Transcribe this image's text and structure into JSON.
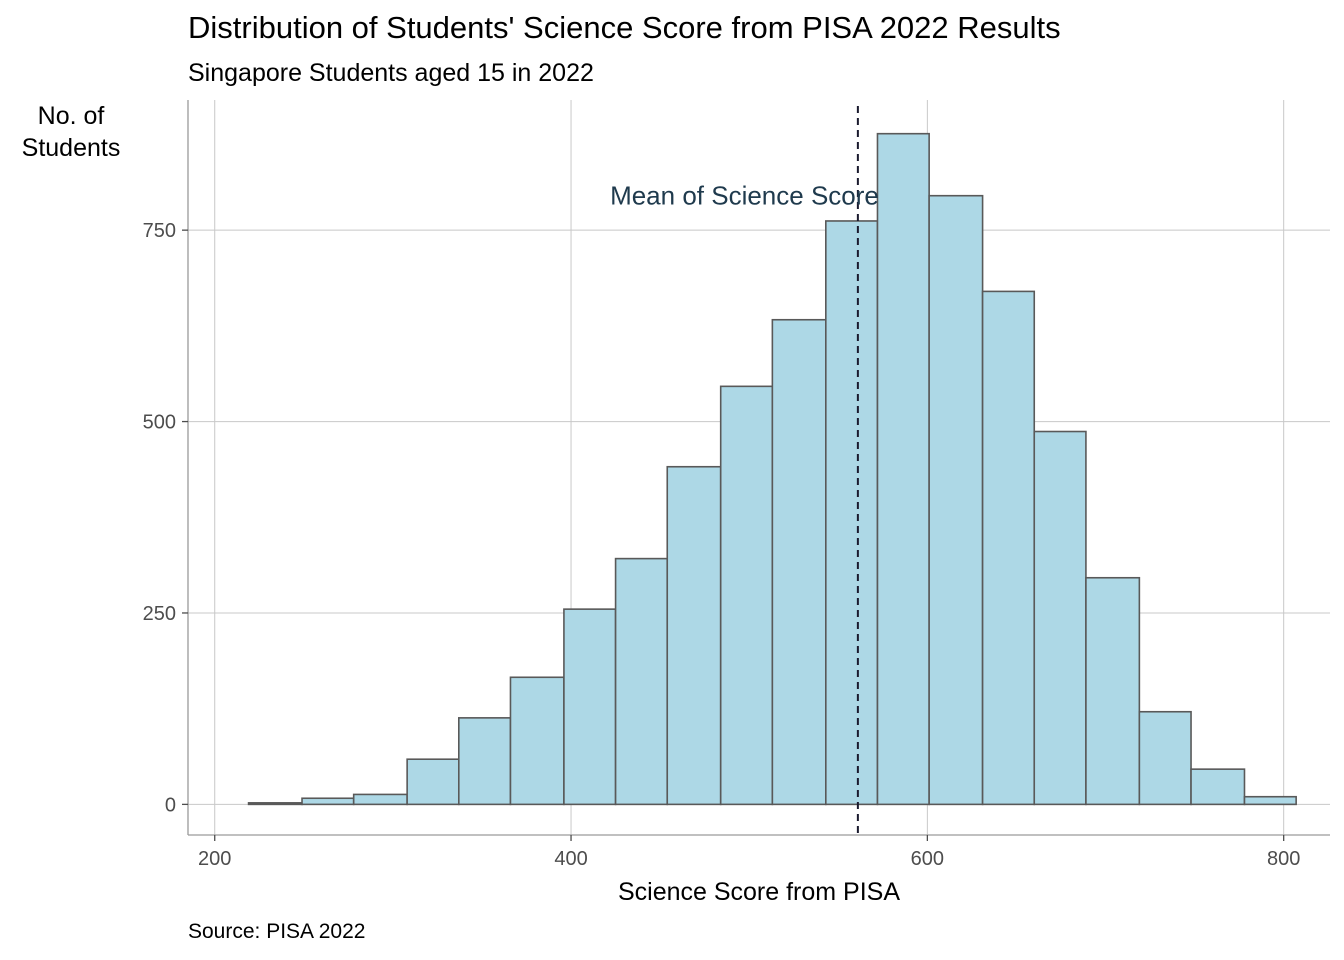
{
  "chart_data": {
    "type": "bar",
    "title": "Distribution of Students' Science Score from PISA 2022 Results",
    "subtitle": "Singapore Students aged 15 in 2022",
    "xlabel": "Science Score from PISA",
    "ylabel": "No. of\nStudents",
    "caption": "Source: PISA 2022",
    "annotation": "Mean of Science Score",
    "mean": 561,
    "xlim": [
      185,
      826
    ],
    "ylim": [
      -40,
      920
    ],
    "x_ticks": [
      200,
      400,
      600,
      800
    ],
    "y_ticks": [
      0,
      250,
      500,
      750
    ],
    "bins": [
      {
        "x0": 219,
        "x1": 249,
        "count": 2
      },
      {
        "x0": 249,
        "x1": 278,
        "count": 8
      },
      {
        "x0": 278,
        "x1": 308,
        "count": 13
      },
      {
        "x0": 308,
        "x1": 337,
        "count": 59
      },
      {
        "x0": 337,
        "x1": 366,
        "count": 113
      },
      {
        "x0": 366,
        "x1": 396,
        "count": 166
      },
      {
        "x0": 396,
        "x1": 425,
        "count": 255
      },
      {
        "x0": 425,
        "x1": 454,
        "count": 321
      },
      {
        "x0": 454,
        "x1": 484,
        "count": 441
      },
      {
        "x0": 484,
        "x1": 513,
        "count": 546
      },
      {
        "x0": 513,
        "x1": 543,
        "count": 633
      },
      {
        "x0": 543,
        "x1": 572,
        "count": 762
      },
      {
        "x0": 572,
        "x1": 601,
        "count": 876
      },
      {
        "x0": 601,
        "x1": 631,
        "count": 795
      },
      {
        "x0": 631,
        "x1": 660,
        "count": 670
      },
      {
        "x0": 660,
        "x1": 689,
        "count": 487
      },
      {
        "x0": 689,
        "x1": 719,
        "count": 296
      },
      {
        "x0": 719,
        "x1": 748,
        "count": 121
      },
      {
        "x0": 748,
        "x1": 778,
        "count": 46
      },
      {
        "x0": 778,
        "x1": 807,
        "count": 10
      }
    ],
    "grid": true,
    "colors": {
      "fill": "#add8e6",
      "stroke": "#595959",
      "grid": "#c8c8c8",
      "mean_line": "#1a1a2e"
    }
  }
}
